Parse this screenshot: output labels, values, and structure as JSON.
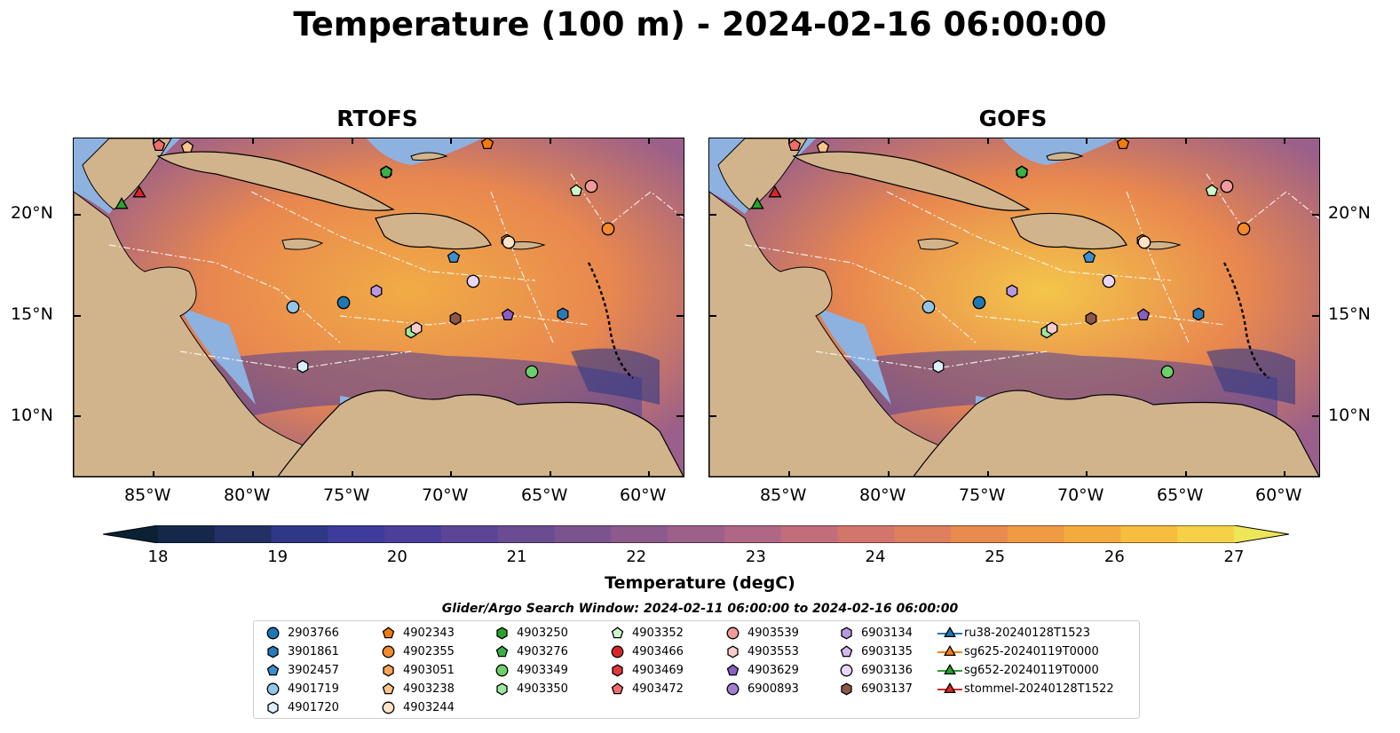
{
  "title": "Temperature (100 m) - 2024-02-16 06:00:00",
  "panels": [
    {
      "title": "RTOFS"
    },
    {
      "title": "GOFS"
    }
  ],
  "lon_ticks": [
    "85°W",
    "80°W",
    "75°W",
    "70°W",
    "65°W",
    "60°W"
  ],
  "lat_ticks": [
    "20°N",
    "15°N",
    "10°N"
  ],
  "colorbar": {
    "ticks": [
      "18",
      "19",
      "20",
      "21",
      "22",
      "23",
      "24",
      "25",
      "26",
      "27"
    ],
    "label": "Temperature (degC)",
    "colors": [
      "#0b2234",
      "#16284a",
      "#223066",
      "#2e3886",
      "#3d3c9c",
      "#4c3f9a",
      "#5b4596",
      "#6b4c92",
      "#7b548f",
      "#8c5a8d",
      "#9d608a",
      "#b06786",
      "#c16e7b",
      "#d2766c",
      "#de7f5e",
      "#e88b4e",
      "#f09a44",
      "#f4ab3e",
      "#f6bd3f",
      "#f6d046",
      "#eee659"
    ]
  },
  "search_window": "Glider/Argo Search Window: 2024-02-11 06:00:00 to 2024-02-16 06:00:00",
  "legend": {
    "columns": [
      [
        {
          "label": "2903766",
          "marker": "circle",
          "color": "#1f77b4"
        },
        {
          "label": "3901861",
          "marker": "hexagon",
          "color": "#2a7ab9"
        },
        {
          "label": "3902457",
          "marker": "pentagon",
          "color": "#3b8fd0"
        },
        {
          "label": "4901719",
          "marker": "circle",
          "color": "#92c5ea"
        },
        {
          "label": "4901720",
          "marker": "hexagon",
          "color": "#dbeefb"
        }
      ],
      [
        {
          "label": "4902343",
          "marker": "pentagon",
          "color": "#f27b09"
        },
        {
          "label": "4902355",
          "marker": "circle",
          "color": "#f58a2b"
        },
        {
          "label": "4903051",
          "marker": "hexagon",
          "color": "#f9a356"
        },
        {
          "label": "4903238",
          "marker": "pentagon",
          "color": "#fcc48e"
        },
        {
          "label": "4903244",
          "marker": "circle",
          "color": "#fde2c4"
        }
      ],
      [
        {
          "label": "4903250",
          "marker": "hexagon",
          "color": "#2ca02c"
        },
        {
          "label": "4903276",
          "marker": "pentagon",
          "color": "#3bb044"
        },
        {
          "label": "4903349",
          "marker": "circle",
          "color": "#6bd06b"
        },
        {
          "label": "4903350",
          "marker": "hexagon",
          "color": "#9ee89e"
        }
      ],
      [
        {
          "label": "4903352",
          "marker": "pentagon",
          "color": "#cdf7c9"
        },
        {
          "label": "4903466",
          "marker": "circle",
          "color": "#d62728"
        },
        {
          "label": "4903469",
          "marker": "hexagon",
          "color": "#e0393b"
        },
        {
          "label": "4903472",
          "marker": "pentagon",
          "color": "#ef6d6d"
        }
      ],
      [
        {
          "label": "4903539",
          "marker": "circle",
          "color": "#f19b9b"
        },
        {
          "label": "4903553",
          "marker": "hexagon",
          "color": "#fbcccc"
        },
        {
          "label": "4903629",
          "marker": "pentagon",
          "color": "#8a5fc2"
        },
        {
          "label": "6900893",
          "marker": "circle",
          "color": "#a07fd0"
        }
      ],
      [
        {
          "label": "6903134",
          "marker": "hexagon",
          "color": "#b899e0"
        },
        {
          "label": "6903135",
          "marker": "pentagon",
          "color": "#d2b9ef"
        },
        {
          "label": "6903136",
          "marker": "circle",
          "color": "#e8d6fa"
        },
        {
          "label": "6903137",
          "marker": "hexagon",
          "color": "#8c564b"
        }
      ],
      [
        {
          "label": "ru38-20240128T1523",
          "marker": "triangle-line",
          "color": "#1f77b4"
        },
        {
          "label": "sg625-20240119T0000",
          "marker": "triangle-line",
          "color": "#ff7f0e"
        },
        {
          "label": "sg652-20240119T0000",
          "marker": "triangle-line",
          "color": "#2ca02c"
        },
        {
          "label": "stommel-20240128T1522",
          "marker": "triangle-line",
          "color": "#d62728"
        }
      ]
    ]
  },
  "map_colors": {
    "land": "#d2b48c",
    "shelf": "#8db2e0",
    "ocean_warm": "#f0a040"
  }
}
